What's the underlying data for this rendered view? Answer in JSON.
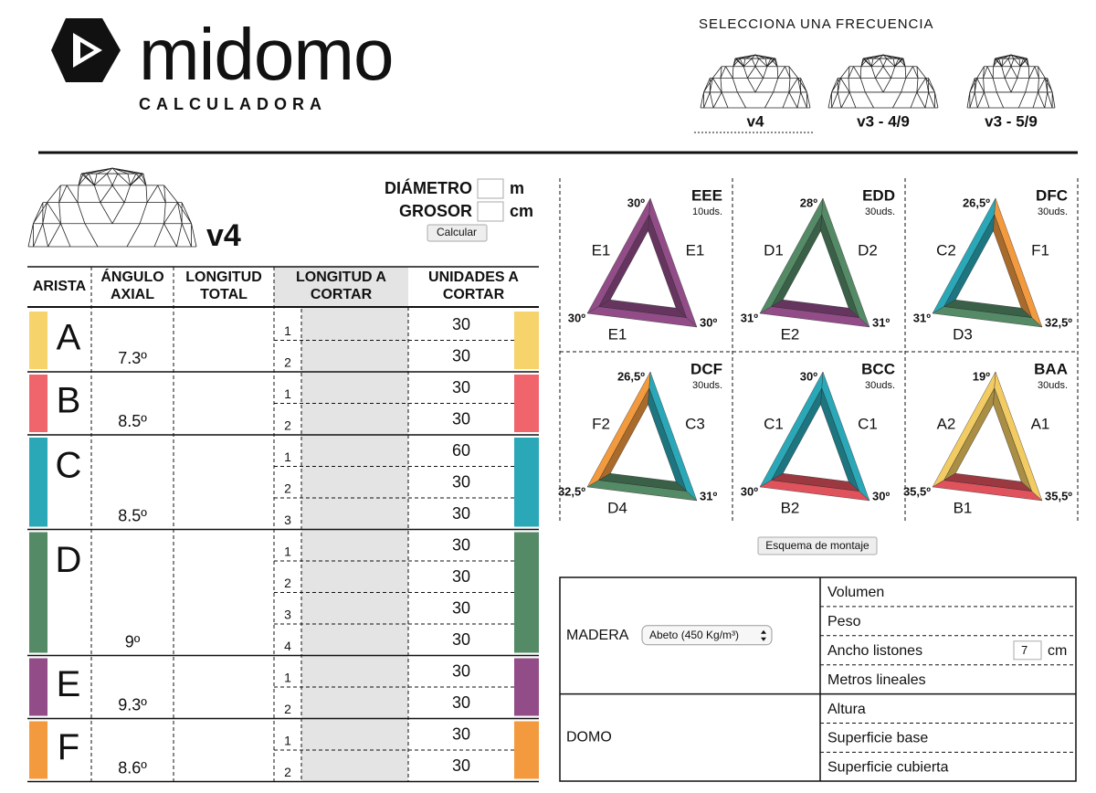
{
  "header": {
    "brand": "midomo",
    "subtitle": "CALCULADORA",
    "frequency_prompt": "SELECCIONA UNA FRECUENCIA",
    "frequencies": [
      "v4",
      "v3 - 4/9",
      "v3 - 5/9"
    ]
  },
  "dimensions": {
    "frequency": "v4",
    "diameter_label": "DIÁMETRO",
    "diameter_unit": "m",
    "thickness_label": "GROSOR",
    "thickness_unit": "cm",
    "button": "Calcular"
  },
  "edges_table": {
    "columns": [
      "ARISTA",
      "ÁNGULO AXIAL",
      "LONGITUD TOTAL",
      "LONGITUD A CORTAR",
      "UNIDADES A CORTAR"
    ],
    "rows": [
      {
        "edge": "A",
        "angle": "7.3º",
        "color": "#f7d36c",
        "cuts": [
          {
            "index": 1,
            "units": 30
          },
          {
            "index": 2,
            "units": 30
          }
        ]
      },
      {
        "edge": "B",
        "angle": "8.5º",
        "color": "#f0646c",
        "cuts": [
          {
            "index": 1,
            "units": 30
          },
          {
            "index": 2,
            "units": 30
          }
        ]
      },
      {
        "edge": "C",
        "angle": "8.5º",
        "color": "#2aa8b8",
        "cuts": [
          {
            "index": 1,
            "units": 60
          },
          {
            "index": 2,
            "units": 30
          },
          {
            "index": 3,
            "units": 30
          }
        ]
      },
      {
        "edge": "D",
        "angle": "9º",
        "color": "#548a66",
        "cuts": [
          {
            "index": 1,
            "units": 30
          },
          {
            "index": 2,
            "units": 30
          },
          {
            "index": 3,
            "units": 30
          },
          {
            "index": 4,
            "units": 30
          }
        ]
      },
      {
        "edge": "E",
        "angle": "9.3º",
        "color": "#924c88",
        "cuts": [
          {
            "index": 1,
            "units": 30
          },
          {
            "index": 2,
            "units": 30
          }
        ]
      },
      {
        "edge": "F",
        "angle": "8.6º",
        "color": "#f39a3e",
        "cuts": [
          {
            "index": 1,
            "units": 30
          },
          {
            "index": 2,
            "units": 30
          }
        ]
      }
    ]
  },
  "triangles": [
    {
      "name": "EEE",
      "units": "10uds.",
      "top_angle": "30º",
      "left_angle": "30º",
      "right_angle": "30º",
      "left_edge": "E1",
      "right_edge": "E1",
      "bottom_edge": "E1",
      "left_color": "#924c88",
      "right_color": "#924c88",
      "bottom_color": "#924c88"
    },
    {
      "name": "EDD",
      "units": "30uds.",
      "top_angle": "28º",
      "left_angle": "31º",
      "right_angle": "31º",
      "left_edge": "D1",
      "right_edge": "D2",
      "bottom_edge": "E2",
      "left_color": "#548a66",
      "right_color": "#548a66",
      "bottom_color": "#924c88"
    },
    {
      "name": "DFC",
      "units": "30uds.",
      "top_angle": "26,5º",
      "left_angle": "31º",
      "right_angle": "32,5º",
      "left_edge": "C2",
      "right_edge": "F1",
      "bottom_edge": "D3",
      "left_color": "#2aa8b8",
      "right_color": "#f39a3e",
      "bottom_color": "#548a66"
    },
    {
      "name": "DCF",
      "units": "30uds.",
      "top_angle": "26,5º",
      "left_angle": "32,5º",
      "right_angle": "31º",
      "left_edge": "F2",
      "right_edge": "C3",
      "bottom_edge": "D4",
      "left_color": "#f39a3e",
      "right_color": "#2aa8b8",
      "bottom_color": "#548a66"
    },
    {
      "name": "BCC",
      "units": "30uds.",
      "top_angle": "30º",
      "left_angle": "30º",
      "right_angle": "30º",
      "left_edge": "C1",
      "right_edge": "C1",
      "bottom_edge": "B2",
      "left_color": "#2aa8b8",
      "right_color": "#2aa8b8",
      "bottom_color": "#e0525c"
    },
    {
      "name": "BAA",
      "units": "30uds.",
      "top_angle": "19º",
      "left_angle": "35,5º",
      "right_angle": "35,5º",
      "left_edge": "A2",
      "right_edge": "A1",
      "bottom_edge": "B1",
      "left_color": "#f2cc62",
      "right_color": "#f2cc62",
      "bottom_color": "#e0525c"
    }
  ],
  "assembly_button": "Esquema de montaje",
  "summary": {
    "sections": [
      {
        "label": "MADERA",
        "select": "Abeto (450 Kg/m³)",
        "fields": [
          {
            "label": "Volumen"
          },
          {
            "label": "Peso"
          },
          {
            "label": "Ancho listones",
            "input": 7,
            "unit": "cm"
          },
          {
            "label": "Metros lineales"
          }
        ]
      },
      {
        "label": "DOMO",
        "fields": [
          {
            "label": "Altura"
          },
          {
            "label": "Superficie base"
          },
          {
            "label": "Superficie cubierta"
          }
        ]
      }
    ]
  }
}
